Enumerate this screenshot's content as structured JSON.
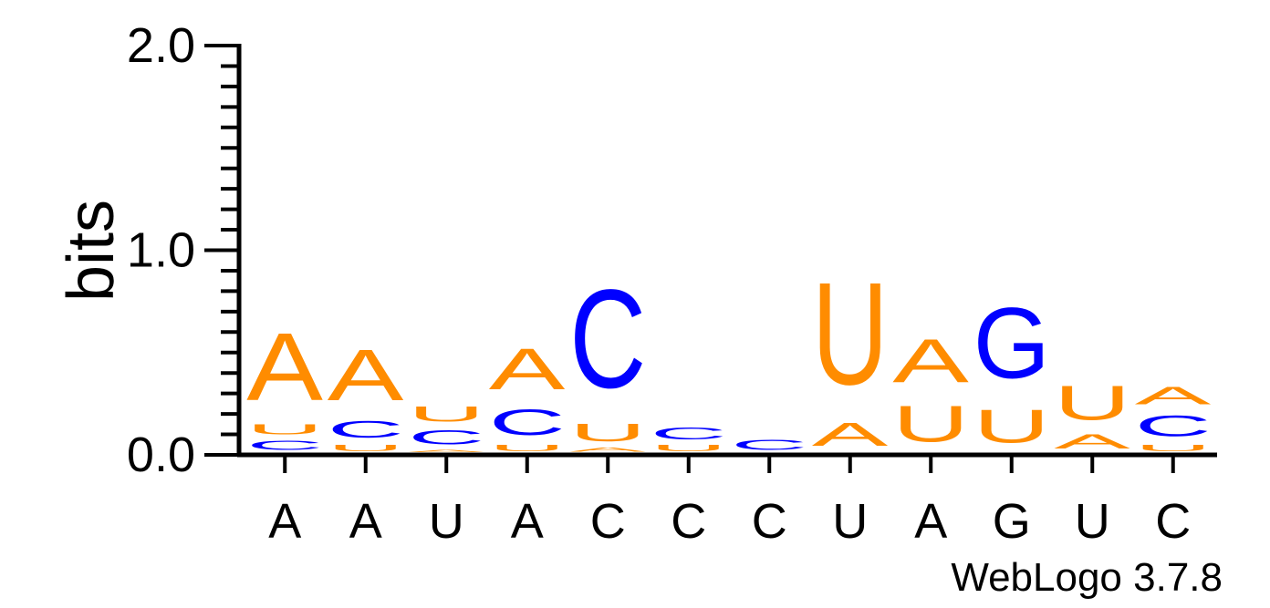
{
  "chart_data": {
    "type": "sequence-logo",
    "ylabel": "bits",
    "ylim": [
      0,
      2
    ],
    "yticks": [
      "0.0",
      "1.0",
      "2.0"
    ],
    "colors": {
      "A": "#ff8c00",
      "U": "#ff8c00",
      "C": "#0000ff",
      "G": "#0000ff"
    },
    "positions": [
      {
        "label": "A",
        "stack": [
          {
            "letter": "C",
            "bits": 0.075
          },
          {
            "letter": "U",
            "bits": 0.08
          },
          {
            "letter": "A",
            "bits": 0.53
          }
        ]
      },
      {
        "label": "A",
        "stack": [
          {
            "letter": "U",
            "bits": 0.05
          },
          {
            "letter": "C",
            "bits": 0.13
          },
          {
            "letter": "A",
            "bits": 0.4
          }
        ]
      },
      {
        "label": "U",
        "stack": [
          {
            "letter": "A",
            "bits": 0.02
          },
          {
            "letter": "C",
            "bits": 0.11
          },
          {
            "letter": "U",
            "bits": 0.12
          }
        ]
      },
      {
        "label": "A",
        "stack": [
          {
            "letter": "U",
            "bits": 0.05
          },
          {
            "letter": "C",
            "bits": 0.2
          },
          {
            "letter": "A",
            "bits": 0.32
          }
        ]
      },
      {
        "label": "C",
        "stack": [
          {
            "letter": "A",
            "bits": 0.03
          },
          {
            "letter": "U",
            "bits": 0.14
          },
          {
            "letter": "C",
            "bits": 0.77
          }
        ]
      },
      {
        "label": "C",
        "stack": [
          {
            "letter": "U",
            "bits": 0.05
          },
          {
            "letter": "C",
            "bits": 0.09
          }
        ]
      },
      {
        "label": "C",
        "stack": [
          {
            "letter": "C",
            "bits": 0.08
          }
        ]
      },
      {
        "label": "U",
        "stack": [
          {
            "letter": "A",
            "bits": 0.18
          },
          {
            "letter": "U",
            "bits": 0.8
          }
        ]
      },
      {
        "label": "A",
        "stack": [
          {
            "letter": "U",
            "bits": 0.28
          },
          {
            "letter": "A",
            "bits": 0.34
          }
        ]
      },
      {
        "label": "G",
        "stack": [
          {
            "letter": "U",
            "bits": 0.26
          },
          {
            "letter": "G",
            "bits": 0.55
          }
        ]
      },
      {
        "label": "U",
        "stack": [
          {
            "letter": "A",
            "bits": 0.11
          },
          {
            "letter": "U",
            "bits": 0.27
          }
        ]
      },
      {
        "label": "C",
        "stack": [
          {
            "letter": "U",
            "bits": 0.05
          },
          {
            "letter": "C",
            "bits": 0.16
          },
          {
            "letter": "A",
            "bits": 0.14
          }
        ]
      }
    ]
  },
  "footer": "WebLogo 3.7.8"
}
